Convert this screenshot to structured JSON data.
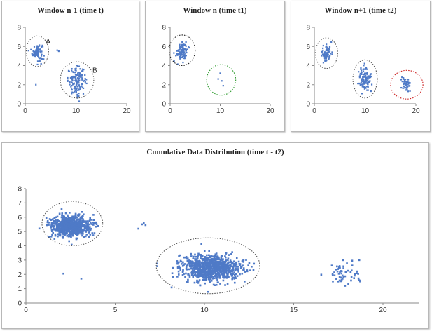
{
  "chart_data": [
    {
      "type": "scatter",
      "title": "Window n-1 (time t)",
      "xlim": [
        0,
        20
      ],
      "ylim": [
        0,
        8
      ],
      "xticks": [
        0,
        10,
        20
      ],
      "yticks": [
        0,
        2,
        4,
        6,
        8
      ],
      "point_color": "#4f7ac7",
      "clusters": [
        {
          "label": "A",
          "cx": 2.4,
          "cy": 5.4,
          "sx": 0.5,
          "sy": 0.45,
          "n": 90
        },
        {
          "label": "B",
          "cx": 10.2,
          "cy": 2.4,
          "sx": 0.9,
          "sy": 0.7,
          "n": 140
        }
      ],
      "extra_points": [
        [
          6.3,
          5.6
        ],
        [
          6.6,
          5.5
        ],
        [
          2.1,
          2.0
        ]
      ],
      "circles": [
        {
          "cx": 2.4,
          "cy": 5.5,
          "rx": 2.2,
          "ry": 1.6,
          "color": "#555555"
        },
        {
          "cx": 10.2,
          "cy": 2.5,
          "rx": 3.3,
          "ry": 1.9,
          "color": "#555555"
        }
      ]
    },
    {
      "type": "scatter",
      "title": "Window n (time t1)",
      "xlim": [
        0,
        20
      ],
      "ylim": [
        0,
        8
      ],
      "xticks": [
        0,
        10,
        20
      ],
      "yticks": [
        0,
        2,
        4,
        6,
        8
      ],
      "point_color": "#4f7ac7",
      "clusters": [
        {
          "label": "",
          "cx": 2.4,
          "cy": 5.5,
          "sx": 0.5,
          "sy": 0.45,
          "n": 110
        }
      ],
      "extra_points": [
        [
          10.0,
          3.2
        ],
        [
          9.6,
          2.6
        ],
        [
          10.3,
          2.4
        ],
        [
          10.6,
          1.9
        ]
      ],
      "circles": [
        {
          "cx": 2.4,
          "cy": 5.6,
          "rx": 2.6,
          "ry": 1.6,
          "color": "#222222"
        },
        {
          "cx": 10.2,
          "cy": 2.5,
          "rx": 2.9,
          "ry": 1.6,
          "color": "#2a9a2a"
        }
      ]
    },
    {
      "type": "scatter",
      "title": "Window n+1 (time t2)",
      "xlim": [
        0,
        20
      ],
      "ylim": [
        0,
        8
      ],
      "xticks": [
        0,
        10,
        20
      ],
      "yticks": [
        0,
        2,
        4,
        6,
        8
      ],
      "point_color": "#4f7ac7",
      "clusters": [
        {
          "label": "",
          "cx": 2.4,
          "cy": 5.3,
          "sx": 0.5,
          "sy": 0.45,
          "n": 80
        },
        {
          "label": "",
          "cx": 10.0,
          "cy": 2.5,
          "sx": 0.6,
          "sy": 0.65,
          "n": 110
        },
        {
          "label": "",
          "cx": 18.0,
          "cy": 2.0,
          "sx": 0.5,
          "sy": 0.4,
          "n": 45
        }
      ],
      "extra_points": [],
      "circles": [
        {
          "cx": 2.4,
          "cy": 5.3,
          "rx": 2.2,
          "ry": 1.6,
          "color": "#555555"
        },
        {
          "cx": 10.0,
          "cy": 2.6,
          "rx": 2.4,
          "ry": 2.0,
          "color": "#555555"
        },
        {
          "cx": 18.2,
          "cy": 2.0,
          "rx": 3.2,
          "ry": 1.5,
          "color": "#cc2222"
        }
      ]
    },
    {
      "type": "scatter",
      "title": "Cumulative Data Distribution (time t - t2)",
      "xlim": [
        0,
        22
      ],
      "ylim": [
        0,
        8
      ],
      "xticks": [
        0,
        5,
        10,
        15,
        20
      ],
      "yticks": [
        0,
        1,
        2,
        3,
        4,
        5,
        6,
        7,
        8
      ],
      "point_color": "#4f7ac7",
      "clusters": [
        {
          "label": "",
          "cx": 2.5,
          "cy": 5.35,
          "sx": 0.55,
          "sy": 0.38,
          "n": 700
        },
        {
          "label": "",
          "cx": 10.4,
          "cy": 2.45,
          "sx": 0.85,
          "sy": 0.45,
          "n": 900
        },
        {
          "label": "",
          "cx": 17.8,
          "cy": 2.0,
          "sx": 0.45,
          "sy": 0.38,
          "n": 60
        }
      ],
      "extra_points": [
        [
          6.3,
          5.2
        ],
        [
          6.6,
          5.6
        ],
        [
          6.7,
          5.45
        ],
        [
          6.5,
          5.5
        ],
        [
          2.1,
          2.05
        ],
        [
          3.1,
          1.7
        ]
      ],
      "circles": [
        {
          "cx": 2.6,
          "cy": 5.55,
          "rx": 1.7,
          "ry": 1.55,
          "color": "#555555"
        },
        {
          "cx": 10.2,
          "cy": 2.6,
          "rx": 2.9,
          "ry": 1.95,
          "color": "#555555"
        }
      ]
    }
  ]
}
